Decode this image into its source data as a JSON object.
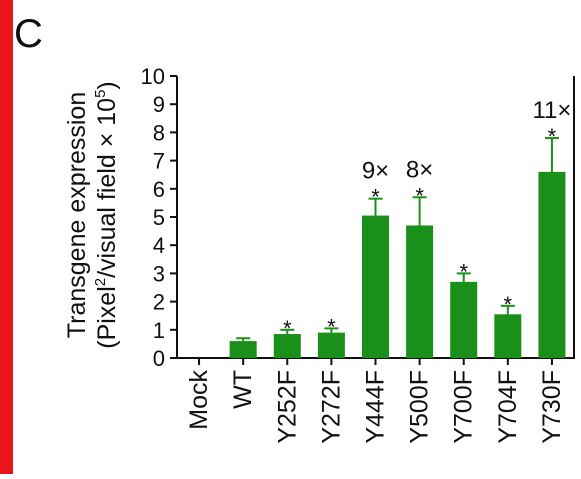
{
  "panel_label": "C",
  "colors": {
    "accent_bar": "#e8161b",
    "bar": "#1a8f1a",
    "axis": "#111111"
  },
  "chart_data": {
    "type": "bar",
    "title": "",
    "ylabel_line1": "Transgene expression",
    "ylabel_line2_main": "(Pixel",
    "ylabel_line2_sup1": "2",
    "ylabel_line2_mid": "/visual field × 10",
    "ylabel_line2_sup2": "5",
    "ylabel_line2_end": ")",
    "xlabel": "",
    "ylim": [
      0,
      10
    ],
    "yticks": [
      "0",
      "1",
      "2",
      "3",
      "4",
      "5",
      "6",
      "7",
      "8",
      "9",
      "10"
    ],
    "categories": [
      "Mock",
      "WT",
      "Y252F",
      "Y272F",
      "Y444F",
      "Y500F",
      "Y700F",
      "Y704F",
      "Y730F"
    ],
    "values": [
      0,
      0.6,
      0.85,
      0.9,
      5.05,
      4.7,
      2.7,
      1.55,
      6.6
    ],
    "errors": [
      0,
      0.1,
      0.15,
      0.15,
      0.6,
      1.0,
      0.3,
      0.3,
      1.2
    ],
    "significance": [
      "",
      "",
      "*",
      "*",
      "*",
      "*",
      "*",
      "*",
      "*"
    ],
    "fold_labels": [
      "",
      "",
      "",
      "",
      "9×",
      "8×",
      "",
      "",
      "11×"
    ],
    "grid": false
  }
}
